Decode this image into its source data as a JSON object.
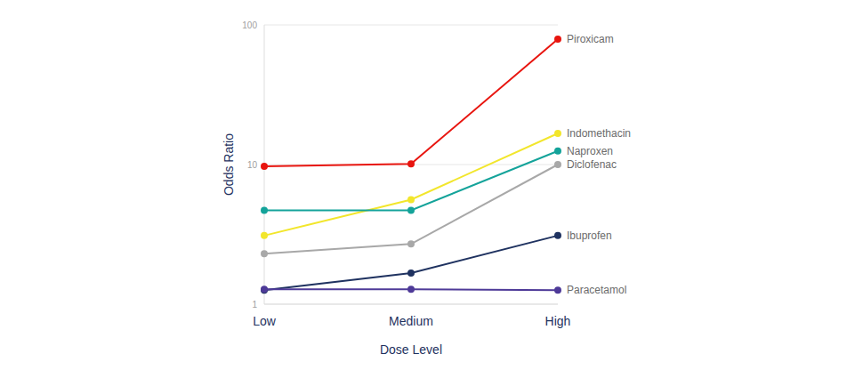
{
  "chart_data": {
    "type": "line",
    "x_label": "Dose Level",
    "y_label": "Odds Ratio",
    "categories": [
      "Low",
      "Medium",
      "High"
    ],
    "series": [
      {
        "name": "Piroxicam",
        "color": "#e8150f",
        "values": [
          9.7,
          10.1,
          79
        ]
      },
      {
        "name": "Indomethacin",
        "color": "#f2e62c",
        "values": [
          3.1,
          5.6,
          16.7
        ]
      },
      {
        "name": "Naproxen",
        "color": "#14a39a",
        "values": [
          4.7,
          4.7,
          12.5
        ]
      },
      {
        "name": "Diclofenac",
        "color": "#a8a8a8",
        "values": [
          2.3,
          2.7,
          10
        ]
      },
      {
        "name": "Ibuprofen",
        "color": "#1f3260",
        "values": [
          1.26,
          1.67,
          3.1
        ]
      },
      {
        "name": "Paracetamol",
        "color": "#4e3a98",
        "values": [
          1.28,
          1.28,
          1.26
        ]
      }
    ],
    "ylim": [
      1,
      100
    ],
    "yticks": [
      1,
      10,
      100
    ],
    "log": "y",
    "grid": true,
    "marker": "circle"
  }
}
